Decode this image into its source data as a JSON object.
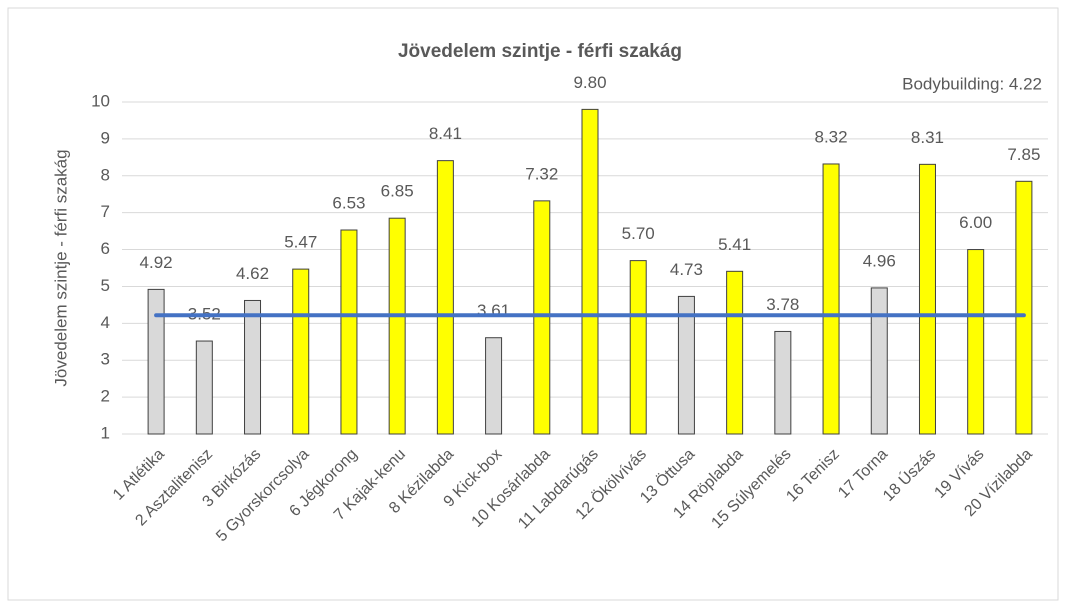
{
  "chart_data": {
    "type": "bar",
    "title": "Jövedelem szintje - férfi szakág",
    "ylabel": "Jövedelem  szintje - férfi szakág",
    "annotation": "Bodybuilding: 4.22",
    "categories": [
      "1 Atlétika",
      "2 Asztalitenisz",
      "3 Birkózás",
      "5 Gyorskorcsolya",
      "6 Jégkorong",
      "7 Kajak-kenu",
      "8 Kézilabda",
      "9 Kick-box",
      "10 Kosárlabda",
      "11 Labdarúgás",
      "12 Ökölvívás",
      "13 Öttusa",
      "14 Röplabda",
      "15 Súlyemelés",
      "16 Tenisz",
      "17 Torna",
      "18 Úszás",
      "19 Vívás",
      "20 Vízilabda"
    ],
    "values": [
      4.92,
      3.52,
      4.62,
      5.47,
      6.53,
      6.85,
      8.41,
      3.61,
      7.32,
      9.8,
      5.7,
      4.73,
      5.41,
      3.78,
      8.32,
      4.96,
      8.31,
      6.0,
      7.85
    ],
    "value_labels": [
      "4.92",
      "3.52",
      "4.62",
      "5.47",
      "6.53",
      "6.85",
      "8.41",
      "3.61",
      "7.32",
      "9.80",
      "5.70",
      "4.73",
      "5.41",
      "3.78",
      "8.32",
      "4.96",
      "8.31",
      "6.00",
      "7.85"
    ],
    "colors": [
      "#d9d9d9",
      "#d9d9d9",
      "#d9d9d9",
      "#ffff00",
      "#ffff00",
      "#ffff00",
      "#ffff00",
      "#d9d9d9",
      "#ffff00",
      "#ffff00",
      "#ffff00",
      "#d9d9d9",
      "#ffff00",
      "#d9d9d9",
      "#ffff00",
      "#d9d9d9",
      "#ffff00",
      "#ffff00",
      "#ffff00"
    ],
    "reference_line": {
      "value": 4.22,
      "color": "#4472c4"
    },
    "ylim": [
      1,
      10
    ],
    "yticks": [
      1,
      2,
      3,
      4,
      5,
      6,
      7,
      8,
      9,
      10
    ],
    "grid": true
  }
}
